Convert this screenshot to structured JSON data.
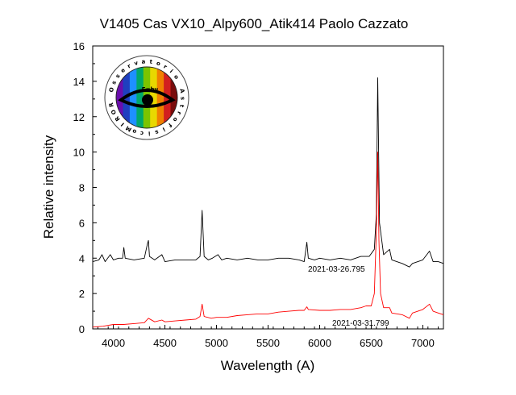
{
  "chart_data": {
    "type": "line",
    "title": "V1405 Cas VX10_Alpy600_Atik414 Paolo Cazzato",
    "xlabel": "Wavelength (A)",
    "ylabel": "Relative intensity",
    "xlim": [
      3800,
      7200
    ],
    "ylim": [
      0,
      16
    ],
    "x_ticks": [
      4000,
      4500,
      5000,
      5500,
      6000,
      6500,
      7000
    ],
    "y_ticks": [
      0,
      2,
      4,
      6,
      8,
      10,
      12,
      14,
      16
    ],
    "grid": false,
    "series": [
      {
        "name": "2021-03-26.795",
        "color": "#000000",
        "x": [
          3800,
          3860,
          3890,
          3920,
          3970,
          4000,
          4050,
          4090,
          4102,
          4115,
          4200,
          4300,
          4330,
          4340,
          4350,
          4400,
          4471,
          4500,
          4600,
          4700,
          4800,
          4840,
          4861,
          4880,
          4920,
          4960,
          5015,
          5050,
          5100,
          5200,
          5300,
          5400,
          5500,
          5600,
          5700,
          5800,
          5850,
          5876,
          5890,
          5950,
          6000,
          6100,
          6200,
          6300,
          6400,
          6480,
          6530,
          6550,
          6563,
          6580,
          6620,
          6678,
          6700,
          6800,
          6870,
          6900,
          7000,
          7065,
          7100,
          7150,
          7200
        ],
        "values": [
          3.8,
          3.9,
          4.2,
          3.8,
          4.2,
          3.9,
          4.0,
          4.0,
          4.6,
          4.0,
          3.9,
          4.0,
          4.8,
          5.0,
          4.1,
          3.9,
          4.2,
          3.8,
          3.9,
          3.9,
          3.9,
          4.1,
          6.7,
          4.1,
          3.9,
          4.0,
          4.2,
          3.9,
          4.0,
          3.9,
          4.0,
          3.9,
          3.9,
          4.0,
          4.0,
          3.9,
          3.8,
          4.9,
          4.0,
          3.9,
          4.0,
          3.9,
          4.0,
          3.9,
          4.1,
          4.1,
          4.5,
          6.5,
          14.2,
          6.0,
          4.2,
          4.5,
          3.9,
          3.7,
          3.5,
          3.7,
          3.9,
          4.4,
          3.8,
          3.8,
          3.7
        ]
      },
      {
        "name": "2021-03-31.799",
        "color": "#ff0000",
        "x": [
          3800,
          3900,
          4000,
          4100,
          4200,
          4300,
          4340,
          4400,
          4471,
          4500,
          4600,
          4700,
          4800,
          4840,
          4861,
          4880,
          4950,
          5000,
          5100,
          5200,
          5300,
          5400,
          5500,
          5600,
          5700,
          5800,
          5850,
          5876,
          5890,
          6000,
          6100,
          6200,
          6300,
          6400,
          6450,
          6500,
          6530,
          6550,
          6563,
          6575,
          6590,
          6620,
          6678,
          6700,
          6800,
          6870,
          6900,
          7000,
          7065,
          7100,
          7150,
          7200
        ],
        "values": [
          0.1,
          0.15,
          0.25,
          0.25,
          0.3,
          0.35,
          0.6,
          0.4,
          0.5,
          0.4,
          0.45,
          0.5,
          0.55,
          0.7,
          1.4,
          0.7,
          0.6,
          0.65,
          0.65,
          0.75,
          0.8,
          0.85,
          0.85,
          0.95,
          1.0,
          1.05,
          1.05,
          1.25,
          1.1,
          1.05,
          1.05,
          1.1,
          1.1,
          1.2,
          1.3,
          1.3,
          2.0,
          5.5,
          10.0,
          5.0,
          2.0,
          1.2,
          1.2,
          0.9,
          0.8,
          0.6,
          0.9,
          1.1,
          1.4,
          1.0,
          0.9,
          0.8
        ]
      }
    ],
    "annotations": [
      "2021-03-26.795",
      "2021-03-31.799"
    ]
  },
  "logo": {
    "ring_text": "MIROR Osservatorio Astrofisico",
    "center_text": "E=hν",
    "spectrum_colors": [
      "#6a0dad",
      "#1f3fbf",
      "#1e90ff",
      "#00a86b",
      "#7cc400",
      "#e8d800",
      "#f08000",
      "#d21f1f",
      "#7a0d0d"
    ]
  }
}
